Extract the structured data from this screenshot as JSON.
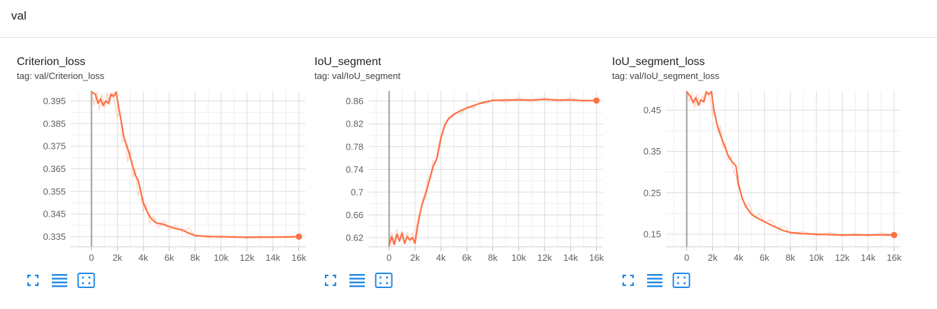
{
  "header": {
    "title": "val"
  },
  "accent_color": "#ff7043",
  "cards": [
    {
      "title": "Criterion_loss",
      "tag": "tag: val/Criterion_loss",
      "chart_data": {
        "type": "line",
        "title": "Criterion_loss",
        "xlabel": "",
        "ylabel": "",
        "x_ticks": [
          "0",
          "2k",
          "4k",
          "6k",
          "8k",
          "10k",
          "12k",
          "14k",
          "16k"
        ],
        "y_ticks": [
          "0.395",
          "0.385",
          "0.375",
          "0.365",
          "0.355",
          "0.345",
          "0.335"
        ],
        "xlim": [
          -1600,
          16500
        ],
        "ylim": [
          0.3305,
          0.3995
        ],
        "grid": true,
        "smoothed": {
          "x": [
            0,
            300,
            500,
            700,
            900,
            1100,
            1300,
            1500,
            1700,
            1900,
            2100,
            2300,
            2500,
            2800,
            3000,
            3200,
            3400,
            3600,
            3800,
            4000,
            4300,
            4600,
            5000,
            5500,
            6000,
            6500,
            7000,
            7500,
            8000,
            9000,
            10000,
            11000,
            12000,
            13000,
            14000,
            15000,
            16000
          ],
          "y": [
            0.399,
            0.398,
            0.394,
            0.396,
            0.393,
            0.395,
            0.394,
            0.398,
            0.397,
            0.399,
            0.392,
            0.386,
            0.379,
            0.374,
            0.37,
            0.366,
            0.362,
            0.36,
            0.355,
            0.35,
            0.346,
            0.343,
            0.341,
            0.3405,
            0.3395,
            0.3385,
            0.338,
            0.3365,
            0.3355,
            0.335,
            0.335,
            0.3348,
            0.3347,
            0.3347,
            0.3348,
            0.3348,
            0.335
          ]
        },
        "raw": {
          "x": [
            0,
            200,
            400,
            600,
            800,
            1000,
            1200,
            1400,
            1600,
            1800,
            2000,
            2200,
            2400,
            2600,
            2800,
            3000,
            3200,
            3400,
            3600,
            3800,
            4000,
            4200,
            4500,
            4800,
            5200,
            5600,
            6000,
            6500,
            7000,
            7500,
            8000,
            9000,
            10000,
            11000,
            12000,
            13000,
            14000,
            15000,
            16000
          ],
          "y": [
            0.399,
            0.393,
            0.399,
            0.391,
            0.398,
            0.392,
            0.399,
            0.393,
            0.399,
            0.394,
            0.388,
            0.39,
            0.377,
            0.378,
            0.368,
            0.373,
            0.361,
            0.365,
            0.353,
            0.357,
            0.346,
            0.349,
            0.341,
            0.344,
            0.339,
            0.342,
            0.338,
            0.34,
            0.337,
            0.339,
            0.335,
            0.3355,
            0.3345,
            0.3352,
            0.3342,
            0.3353,
            0.3344,
            0.3352,
            0.335
          ]
        },
        "last_point": {
          "x": 16000,
          "y": 0.335
        }
      }
    },
    {
      "title": "IoU_segment",
      "tag": "tag: val/IoU_segment",
      "chart_data": {
        "type": "line",
        "title": "IoU_segment",
        "xlabel": "",
        "ylabel": "",
        "x_ticks": [
          "0",
          "2k",
          "4k",
          "6k",
          "8k",
          "10k",
          "12k",
          "14k",
          "16k"
        ],
        "y_ticks": [
          "0.86",
          "0.82",
          "0.78",
          "0.74",
          "0.7",
          "0.66",
          "0.62"
        ],
        "xlim": [
          -1600,
          16500
        ],
        "ylim": [
          0.604,
          0.878
        ],
        "grid": true,
        "smoothed": {
          "x": [
            0,
            200,
            400,
            600,
            800,
            1000,
            1200,
            1400,
            1600,
            1800,
            2000,
            2200,
            2500,
            2800,
            3100,
            3400,
            3700,
            4000,
            4300,
            4600,
            5000,
            5500,
            6000,
            6500,
            7000,
            7500,
            8000,
            9000,
            10000,
            11000,
            12000,
            13000,
            14000,
            15000,
            16000
          ],
          "y": [
            0.606,
            0.622,
            0.608,
            0.626,
            0.614,
            0.628,
            0.61,
            0.622,
            0.616,
            0.62,
            0.61,
            0.64,
            0.675,
            0.695,
            0.72,
            0.745,
            0.76,
            0.795,
            0.818,
            0.83,
            0.837,
            0.843,
            0.848,
            0.852,
            0.856,
            0.859,
            0.861,
            0.862,
            0.862,
            0.862,
            0.863,
            0.862,
            0.862,
            0.861,
            0.861
          ]
        },
        "raw": {
          "x": [
            0,
            200,
            400,
            600,
            800,
            1000,
            1200,
            1400,
            1600,
            1800,
            2000,
            2200,
            2400,
            2600,
            2800,
            3000,
            3200,
            3400,
            3600,
            3800,
            4000,
            4200,
            4500,
            4800,
            5200,
            5600,
            6000,
            6500,
            7000,
            7500,
            8000,
            9000,
            10000,
            11000,
            12000,
            13000,
            14000,
            15000,
            16000
          ],
          "y": [
            0.606,
            0.63,
            0.61,
            0.635,
            0.615,
            0.632,
            0.608,
            0.63,
            0.612,
            0.628,
            0.615,
            0.655,
            0.665,
            0.69,
            0.7,
            0.725,
            0.73,
            0.755,
            0.75,
            0.78,
            0.8,
            0.81,
            0.825,
            0.83,
            0.84,
            0.838,
            0.85,
            0.848,
            0.858,
            0.855,
            0.864,
            0.858,
            0.866,
            0.858,
            0.866,
            0.858,
            0.866,
            0.859,
            0.861
          ]
        },
        "last_point": {
          "x": 16000,
          "y": 0.861
        }
      }
    },
    {
      "title": "IoU_segment_loss",
      "tag": "tag: val/IoU_segment_loss",
      "chart_data": {
        "type": "line",
        "title": "IoU_segment_loss",
        "xlabel": "",
        "ylabel": "",
        "x_ticks": [
          "0",
          "2k",
          "4k",
          "6k",
          "8k",
          "10k",
          "12k",
          "14k",
          "16k"
        ],
        "y_ticks": [
          "0.45",
          "0.35",
          "0.25",
          "0.15"
        ],
        "xlim": [
          -1600,
          16500
        ],
        "ylim": [
          0.1195,
          0.4965
        ],
        "grid": true,
        "smoothed": {
          "x": [
            0,
            300,
            500,
            700,
            900,
            1100,
            1300,
            1500,
            1700,
            1900,
            2100,
            2300,
            2600,
            2900,
            3200,
            3500,
            3800,
            4000,
            4300,
            4600,
            5000,
            5500,
            6000,
            6500,
            7000,
            7500,
            8000,
            9000,
            10000,
            11000,
            12000,
            13000,
            14000,
            15000,
            16000
          ],
          "y": [
            0.495,
            0.482,
            0.468,
            0.48,
            0.462,
            0.475,
            0.47,
            0.494,
            0.488,
            0.495,
            0.45,
            0.42,
            0.39,
            0.365,
            0.34,
            0.325,
            0.315,
            0.27,
            0.235,
            0.215,
            0.198,
            0.188,
            0.18,
            0.172,
            0.165,
            0.158,
            0.154,
            0.151,
            0.15,
            0.149,
            0.148,
            0.148,
            0.148,
            0.148,
            0.148
          ]
        },
        "raw": {
          "x": [
            0,
            200,
            400,
            600,
            800,
            1000,
            1200,
            1400,
            1600,
            1800,
            2000,
            2200,
            2400,
            2600,
            2800,
            3000,
            3200,
            3400,
            3600,
            3800,
            4000,
            4200,
            4500,
            4800,
            5200,
            5600,
            6000,
            6500,
            7000,
            7500,
            8000,
            9000,
            10000,
            11000,
            12000,
            13000,
            14000,
            15000,
            16000
          ],
          "y": [
            0.495,
            0.47,
            0.49,
            0.455,
            0.49,
            0.46,
            0.485,
            0.47,
            0.495,
            0.48,
            0.44,
            0.445,
            0.395,
            0.41,
            0.36,
            0.37,
            0.33,
            0.34,
            0.305,
            0.29,
            0.26,
            0.25,
            0.215,
            0.225,
            0.19,
            0.2,
            0.178,
            0.185,
            0.163,
            0.17,
            0.152,
            0.156,
            0.146,
            0.154,
            0.145,
            0.152,
            0.145,
            0.153,
            0.148
          ]
        },
        "last_point": {
          "x": 16000,
          "y": 0.148
        }
      }
    }
  ],
  "toolbar": [
    {
      "icon": "fullscreen-icon"
    },
    {
      "icon": "toggle-log-scale-icon"
    },
    {
      "icon": "fit-domain-icon"
    }
  ]
}
